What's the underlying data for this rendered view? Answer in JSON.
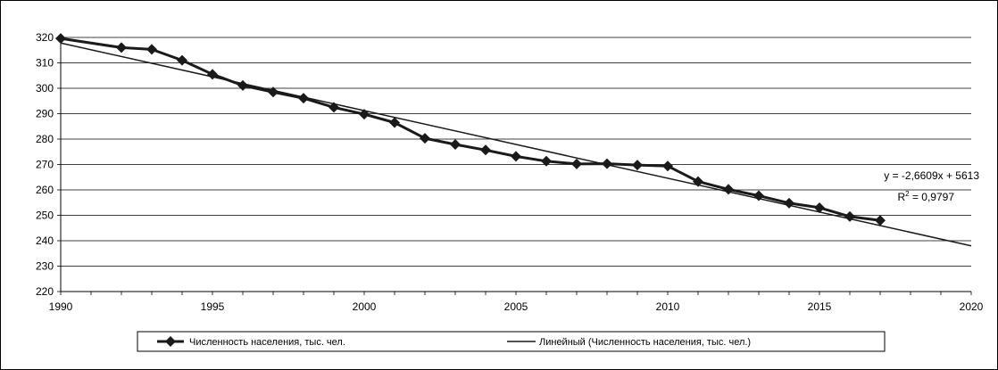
{
  "chart_data": {
    "type": "line",
    "title": "",
    "xlabel": "",
    "ylabel": "",
    "xlim": [
      1990,
      2020
    ],
    "ylim": [
      220,
      320
    ],
    "x_ticks": [
      1990,
      1995,
      2000,
      2005,
      2010,
      2015,
      2020
    ],
    "y_ticks": [
      220,
      230,
      240,
      250,
      260,
      270,
      280,
      290,
      300,
      310,
      320
    ],
    "grid": "horizontal",
    "legend_position": "bottom",
    "series": [
      {
        "name": "Численность населения, тыс. чел.",
        "marker": "diamond",
        "color": "#1a1a1a",
        "points": [
          [
            1990,
            319.6
          ],
          [
            1992,
            316.0
          ],
          [
            1993,
            315.3
          ],
          [
            1994,
            311.0
          ],
          [
            1995,
            305.5
          ],
          [
            1996,
            301.1
          ],
          [
            1997,
            298.5
          ],
          [
            1998,
            296.1
          ],
          [
            1999,
            292.5
          ],
          [
            2000,
            289.8
          ],
          [
            2001,
            286.5
          ],
          [
            2002,
            280.3
          ],
          [
            2003,
            277.9
          ],
          [
            2004,
            275.7
          ],
          [
            2005,
            273.2
          ],
          [
            2006,
            271.3
          ],
          [
            2007,
            270.2
          ],
          [
            2008,
            270.3
          ],
          [
            2009,
            269.8
          ],
          [
            2010,
            269.4
          ],
          [
            2011,
            263.3
          ],
          [
            2012,
            260.2
          ],
          [
            2013,
            257.7
          ],
          [
            2014,
            254.8
          ],
          [
            2015,
            253.0
          ],
          [
            2016,
            249.5
          ],
          [
            2017,
            248.0
          ]
        ]
      },
      {
        "name": "Линейный (Численность населения, тыс. чел.)",
        "type": "trendline",
        "color": "#1a1a1a",
        "slope": -2.6609,
        "intercept": 5613
      }
    ],
    "annotations": {
      "equation": "y = -2,6609x + 5613",
      "r2_prefix": "R",
      "r2_exp": "2",
      "r2_value": " = 0,9797"
    }
  }
}
